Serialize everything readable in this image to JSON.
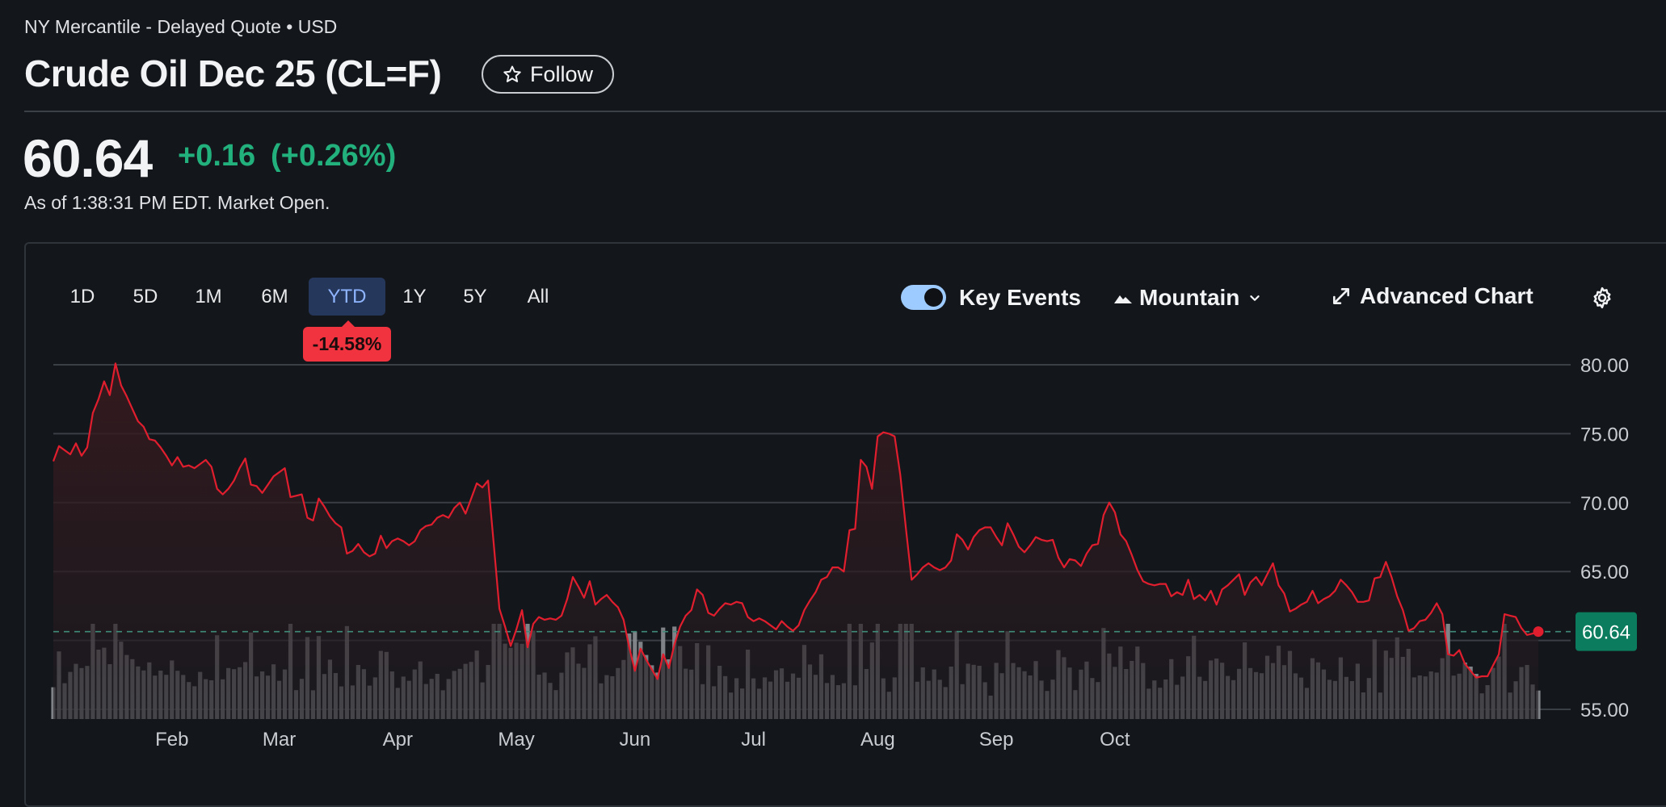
{
  "header": {
    "exchange": "NY Mercantile - Delayed Quote • USD",
    "title": "Crude Oil Dec 25 (CL=F)",
    "follow_label": "Follow"
  },
  "quote": {
    "price": "60.64",
    "change": "+0.16",
    "change_pct": "(+0.26%)",
    "as_of": "As of 1:38:31 PM EDT. Market Open."
  },
  "toolbar": {
    "ranges": [
      "1D",
      "5D",
      "1M",
      "6M",
      "YTD",
      "1Y",
      "5Y",
      "All"
    ],
    "active_range": "YTD",
    "ytd_change": "-14.58%",
    "key_events_label": "Key Events",
    "key_events_on": true,
    "chart_type_label": "Mountain",
    "advanced_label": "Advanced Chart"
  },
  "colors": {
    "line": "#e01e2e",
    "up": "#22b07d",
    "down": "#f0333e",
    "volume": "#8c8f94"
  },
  "chart_data": {
    "type": "area",
    "title": "",
    "xlabel": "",
    "ylabel": "",
    "ylim": [
      55,
      80
    ],
    "yticks": [
      55,
      60,
      65,
      70,
      75,
      80
    ],
    "ytick_labels": [
      "55.00",
      "",
      "65.00",
      "70.00",
      "75.00",
      "80.00"
    ],
    "x_labels": [
      "Feb",
      "Mar",
      "Apr",
      "May",
      "Jun",
      "Jul",
      "Aug",
      "Sep",
      "Oct"
    ],
    "current_value": 60.64,
    "current_label": "60.64",
    "grid": true,
    "series": [
      {
        "values": [
          73.0,
          74.1,
          73.8,
          73.5,
          74.3,
          73.4,
          74.0,
          76.5,
          77.5,
          78.8,
          77.8,
          80.1,
          78.5,
          77.7,
          76.8,
          75.9,
          75.5,
          74.6,
          74.5,
          74.0,
          73.4,
          72.7,
          73.3,
          72.6,
          72.7,
          72.5,
          72.8,
          73.1,
          72.6,
          71.0,
          70.6,
          71.0,
          71.6,
          72.5,
          73.2,
          71.3,
          71.2,
          70.7,
          71.3,
          71.9,
          72.2,
          72.5,
          70.4,
          70.5,
          70.6,
          68.9,
          68.7,
          70.3,
          69.7,
          69.0,
          68.5,
          68.2,
          66.3,
          66.5,
          67.0,
          66.4,
          66.1,
          66.3,
          67.6,
          66.7,
          67.2,
          67.4,
          67.2,
          66.9,
          67.2,
          68.0,
          68.3,
          68.4,
          68.9,
          69.1,
          68.9,
          69.6,
          70.0,
          69.2,
          70.3,
          71.4,
          71.1,
          71.6,
          67.0,
          62.3,
          61.0,
          59.6,
          60.8,
          62.2,
          59.5,
          61.2,
          61.7,
          61.5,
          61.6,
          61.5,
          61.8,
          63.0,
          64.6,
          63.9,
          63.1,
          64.3,
          62.6,
          63.0,
          63.3,
          62.8,
          62.4,
          61.5,
          59.5,
          57.8,
          59.4,
          58.6,
          57.9,
          57.2,
          59.0,
          58.0,
          59.7,
          61.0,
          61.8,
          62.2,
          63.7,
          63.3,
          62.0,
          61.8,
          62.3,
          62.7,
          62.6,
          62.8,
          62.7,
          61.7,
          61.4,
          61.6,
          61.4,
          61.1,
          60.8,
          61.4,
          61.0,
          60.7,
          61.1,
          62.2,
          62.9,
          63.5,
          64.4,
          64.6,
          65.3,
          65.3,
          65.0,
          68.0,
          68.1,
          73.1,
          72.6,
          71.0,
          74.8,
          75.1,
          75.0,
          74.8,
          72.0,
          68.1,
          64.4,
          64.8,
          65.3,
          65.6,
          65.3,
          65.1,
          65.3,
          65.8,
          67.7,
          67.3,
          66.6,
          67.5,
          68.0,
          68.2,
          68.2,
          67.5,
          66.9,
          68.5,
          67.7,
          66.8,
          66.4,
          66.9,
          67.5,
          67.3,
          67.2,
          67.3,
          66.0,
          65.3,
          65.9,
          65.8,
          65.4,
          66.3,
          66.9,
          67.0,
          69.1,
          70.0,
          69.3,
          67.7,
          67.2,
          66.2,
          65.1,
          64.3,
          64.1,
          64.0,
          64.1,
          64.1,
          63.2,
          63.5,
          63.3,
          64.4,
          63.0,
          63.3,
          62.9,
          63.6,
          62.6,
          63.7,
          64.0,
          64.4,
          64.8,
          63.3,
          64.2,
          64.6,
          64.0,
          64.8,
          65.6,
          64.0,
          63.4,
          62.1,
          62.3,
          62.6,
          62.8,
          63.6,
          62.7,
          63.0,
          63.2,
          63.6,
          64.4,
          64.0,
          63.5,
          62.8,
          62.8,
          62.9,
          64.5,
          64.6,
          65.7,
          64.6,
          63.2,
          62.2,
          60.7,
          60.9,
          61.4,
          61.5,
          62.0,
          62.7,
          61.9,
          59.0,
          58.9,
          59.3,
          58.3,
          57.8,
          57.3,
          57.4,
          57.4,
          58.2,
          59.0,
          61.9,
          61.8,
          61.7,
          60.9,
          60.4,
          60.5,
          60.64
        ]
      }
    ]
  }
}
